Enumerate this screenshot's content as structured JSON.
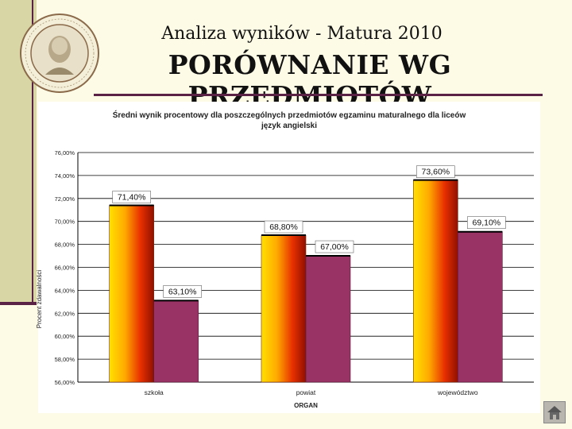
{
  "slide": {
    "subtitle": "Analiza wyników  - Matura 2010",
    "title": "PORÓWNANIE WG PRZEDMIOTÓW",
    "logo_icon": "school-seal-logo",
    "home_icon": "home-icon",
    "accent_color": "#5a2245",
    "band_color": "#d8d6a4",
    "background_color": "#fdfbe6"
  },
  "chart_data": {
    "type": "bar",
    "title_line1": "Średni wynik procentowy dla poszczególnych przedmiotów egzaminu maturalnego dla liceów",
    "title_line2": "język angielski",
    "xlabel": "ORGAN",
    "ylabel": "Procent zdawalności",
    "categories": [
      "szkoła",
      "powiat",
      "województwo"
    ],
    "ylim": [
      56,
      76
    ],
    "yticks": [
      "56,00%",
      "58,00%",
      "60,00%",
      "62,00%",
      "64,00%",
      "66,00%",
      "68,00%",
      "70,00%",
      "72,00%",
      "74,00%",
      "76,00%"
    ],
    "series": [
      {
        "values": [
          71.4,
          68.8,
          73.6
        ],
        "labels": [
          "71,40%",
          "68,80%",
          "73,60%"
        ],
        "color": "gradient-red-yellow"
      },
      {
        "values": [
          63.1,
          67.0,
          69.1
        ],
        "labels": [
          "63,10%",
          "67,00%",
          "69,10%"
        ],
        "color": "#993366"
      }
    ],
    "grid": true,
    "legend": "none"
  }
}
